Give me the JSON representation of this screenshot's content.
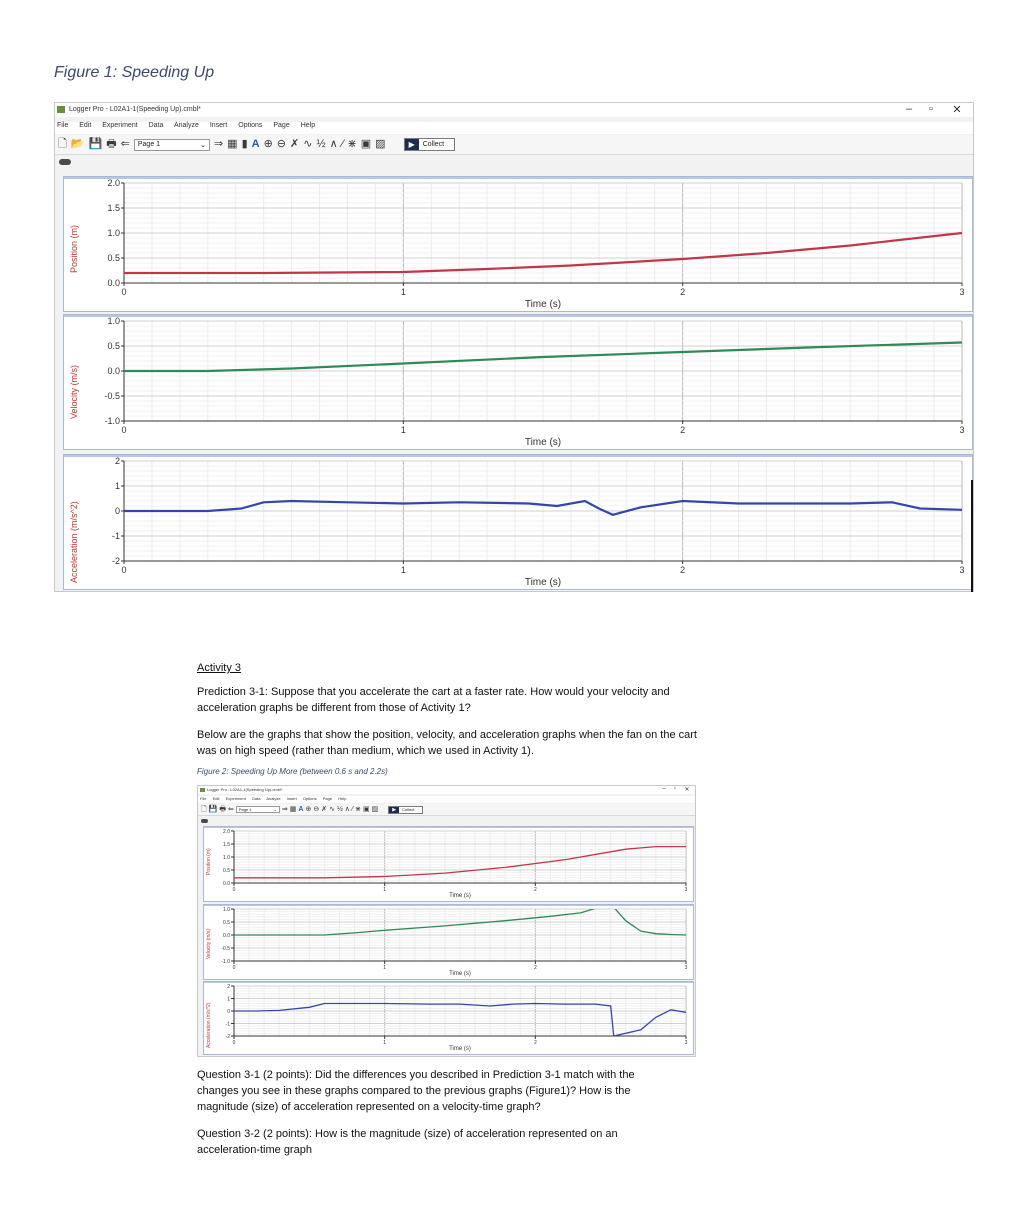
{
  "figure1_caption": "Figure 1: Speeding Up",
  "window": {
    "title": "Logger Pro - L02A1-1(Speeding Up).cmbl*",
    "menu": [
      "File",
      "Edit",
      "Experiment",
      "Data",
      "Analyze",
      "Insert",
      "Options",
      "Page",
      "Help"
    ],
    "page_select": "Page 1",
    "collect_label": "Collect",
    "controls": {
      "minimize": "–",
      "restore": "▫",
      "close": "✕"
    }
  },
  "figure1_graphs": [
    {
      "ylabel": "Position (m)",
      "xlabel": "Time (s)",
      "yticks": [
        "2.0",
        "1.5",
        "1.0",
        "0.5",
        "0.0"
      ],
      "xticks": [
        "0",
        "1",
        "2",
        "3"
      ],
      "color": "#c2364a"
    },
    {
      "ylabel": "Velocity (m/s)",
      "xlabel": "Time (s)",
      "yticks": [
        "1.0",
        "0.5",
        "0.0",
        "-0.5",
        "-1.0"
      ],
      "xticks": [
        "0",
        "1",
        "2",
        "3"
      ],
      "color": "#2e8b57"
    },
    {
      "ylabel": "Acceleration (m/s^2)",
      "xlabel": "Time (s)",
      "yticks": [
        "2",
        "1",
        "0",
        "-1",
        "-2"
      ],
      "xticks": [
        "0",
        "1",
        "2",
        "3"
      ],
      "color": "#3447a8"
    }
  ],
  "activity": {
    "title": "Activity 3",
    "prediction": "Prediction 3-1: Suppose that you accelerate the cart at a faster rate. How would your velocity and acceleration graphs be different from those of Activity 1?",
    "below": "Below are the graphs that show the position, velocity, and acceleration graphs when the fan on the cart was on high speed (rather than medium, which we used in Activity 1).",
    "figure2_caption": "Figure 2: Speeding Up More (between 0.6 s and 2.2s)",
    "q31": "Question 3-1 (2 points): Did the differences you described in Prediction 3-1 match with the changes you see in these graphs compared to the previous graphs (Figure1)? How is the magnitude (size) of acceleration represented on a velocity-time graph?",
    "q32": "Question 3-2 (2 points): How is the magnitude (size) of acceleration represented on an acceleration-time graph"
  },
  "window2": {
    "title": "Logger Pro - L02A1-1(Speeding Up).cmbl*",
    "page_select": "Page 1",
    "collect_label": "Collect"
  },
  "chart_data": [
    {
      "type": "line",
      "xlabel": "Time (s)",
      "ylabel": "Position (m)",
      "xlim": [
        0,
        3
      ],
      "ylim": [
        0,
        2
      ],
      "series": [
        {
          "x": [
            0,
            0.5,
            1,
            1.3,
            1.6,
            2,
            2.3,
            2.6,
            3
          ],
          "y": [
            0.2,
            0.2,
            0.22,
            0.28,
            0.35,
            0.48,
            0.6,
            0.75,
            1.0
          ]
        }
      ]
    },
    {
      "type": "line",
      "xlabel": "Time (s)",
      "ylabel": "Velocity (m/s)",
      "xlim": [
        0,
        3
      ],
      "ylim": [
        -1,
        1
      ],
      "series": [
        {
          "x": [
            0,
            0.3,
            0.6,
            1,
            1.5,
            2,
            2.5,
            3
          ],
          "y": [
            0.0,
            0.0,
            0.05,
            0.15,
            0.28,
            0.38,
            0.48,
            0.57
          ]
        }
      ]
    },
    {
      "type": "line",
      "xlabel": "Time (s)",
      "ylabel": "Acceleration (m/s^2)",
      "xlim": [
        0,
        3
      ],
      "ylim": [
        -2,
        2
      ],
      "series": [
        {
          "x": [
            0,
            0.3,
            0.42,
            0.5,
            0.6,
            0.8,
            1,
            1.2,
            1.45,
            1.55,
            1.65,
            1.7,
            1.75,
            1.85,
            2.0,
            2.2,
            2.4,
            2.6,
            2.75,
            2.85,
            3.0
          ],
          "y": [
            0,
            0,
            0.1,
            0.35,
            0.4,
            0.35,
            0.3,
            0.35,
            0.3,
            0.2,
            0.4,
            0.1,
            -0.15,
            0.15,
            0.4,
            0.3,
            0.3,
            0.3,
            0.35,
            0.1,
            0.05
          ]
        }
      ]
    },
    {
      "type": "line",
      "xlabel": "Time (s)",
      "ylabel": "Position (m)",
      "xlim": [
        0,
        3
      ],
      "ylim": [
        0,
        2
      ],
      "series": [
        {
          "x": [
            0,
            0.6,
            1,
            1.4,
            1.8,
            2.2,
            2.6,
            2.8,
            3
          ],
          "y": [
            0.2,
            0.2,
            0.25,
            0.38,
            0.6,
            0.9,
            1.3,
            1.4,
            1.4
          ]
        }
      ]
    },
    {
      "type": "line",
      "xlabel": "Time (s)",
      "ylabel": "Velocity (m/s)",
      "xlim": [
        0,
        3
      ],
      "ylim": [
        -1,
        1
      ],
      "series": [
        {
          "x": [
            0,
            0.6,
            0.8,
            1,
            1.4,
            1.8,
            2.1,
            2.3,
            2.5,
            2.6,
            2.7,
            2.8,
            2.9,
            3
          ],
          "y": [
            0,
            0,
            0.08,
            0.18,
            0.35,
            0.55,
            0.72,
            0.85,
            1.2,
            0.55,
            0.15,
            0.05,
            0.02,
            0.0
          ]
        }
      ]
    },
    {
      "type": "line",
      "xlabel": "Time (s)",
      "ylabel": "Acceleration (m/s^2)",
      "xlim": [
        0,
        3
      ],
      "ylim": [
        -2,
        2
      ],
      "series": [
        {
          "x": [
            0,
            0.15,
            0.3,
            0.5,
            0.6,
            0.8,
            1.0,
            1.3,
            1.5,
            1.7,
            1.85,
            2.0,
            2.2,
            2.4,
            2.5,
            2.52,
            2.7,
            2.8,
            2.9,
            3.0
          ],
          "y": [
            0,
            0,
            0.05,
            0.3,
            0.6,
            0.6,
            0.6,
            0.55,
            0.55,
            0.4,
            0.55,
            0.6,
            0.55,
            0.55,
            0.4,
            -2,
            -1.5,
            -0.5,
            0.1,
            -0.1
          ]
        }
      ]
    }
  ]
}
